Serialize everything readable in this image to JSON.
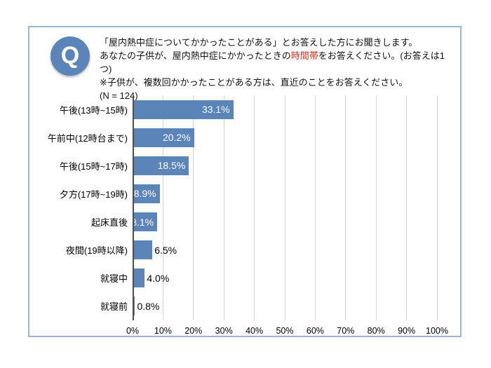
{
  "question": {
    "badge_letter": "Q",
    "line1": "「屋内熱中症についてかかったことがある」とお答えした方にお聞きします。",
    "line2_pre": "あなたの子供が、屋内熱中症にかかったときの",
    "line2_highlight": "時間帯",
    "line2_post": "をお答えください。(お答えは1つ)",
    "line3": "※子供が、複数回かかったことがある方は、直近のことをお答えください。",
    "sample_size": "(N = 124)"
  },
  "chart_data": {
    "type": "bar",
    "orientation": "horizontal",
    "categories": [
      "午後(13時~15時)",
      "午前中(12時台まで)",
      "午後(15時~17時)",
      "夕方(17時~19時)",
      "起床直後",
      "夜間(19時以降)",
      "就寝中",
      "就寝前"
    ],
    "values": [
      33.1,
      20.2,
      18.5,
      8.9,
      8.1,
      6.5,
      4.0,
      0.8
    ],
    "value_labels": [
      "33.1%",
      "20.2%",
      "18.5%",
      "8.9%",
      "8.1%",
      "6.5%",
      "4.0%",
      "0.8%"
    ],
    "x_ticks": [
      "0%",
      "10%",
      "20%",
      "30%",
      "40%",
      "50%",
      "60%",
      "70%",
      "80%",
      "90%",
      "100%"
    ],
    "xlim": [
      0,
      100
    ],
    "grid": true,
    "legend": false,
    "title": "",
    "xlabel": "",
    "ylabel": ""
  },
  "colors": {
    "bar": "#5b85b9",
    "badge": "#5b85b9",
    "frame_border": "#9db4d3",
    "grid": "#d3d3d3",
    "axis": "#4d4d4d",
    "highlight_red": "#c8341f",
    "value_label_inside": "#ffffff",
    "value_label_outside": "#000000"
  }
}
